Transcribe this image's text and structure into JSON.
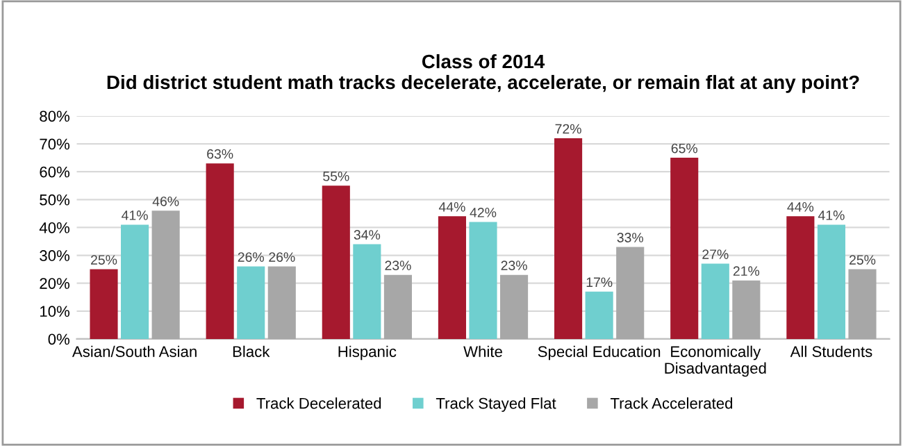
{
  "chart_data": {
    "type": "bar",
    "title": "Class of 2014\nDid district student math tracks decelerate, accelerate, or remain flat at any point?",
    "categories": [
      "Asian/South Asian",
      "Black",
      "Hispanic",
      "White",
      "Special Education",
      "Economically\nDisadvantaged",
      "All Students"
    ],
    "series": [
      {
        "name": "Track Decelerated",
        "color": "#a6192e",
        "values": [
          25,
          63,
          55,
          44,
          72,
          65,
          44
        ],
        "value_labels": [
          "25%",
          "63%",
          "55%",
          "44%",
          "72%",
          "65%",
          "44%"
        ]
      },
      {
        "name": "Track Stayed Flat",
        "color": "#6fcfcf",
        "values": [
          41,
          26,
          34,
          42,
          17,
          27,
          41
        ],
        "value_labels": [
          "41%",
          "26%",
          "34%",
          "42%",
          "17%",
          "27%",
          "41%"
        ]
      },
      {
        "name": "Track Accelerated",
        "color": "#a7a7a7",
        "values": [
          46,
          26,
          23,
          23,
          33,
          21,
          25
        ],
        "value_labels": [
          "46%",
          "26%",
          "23%",
          "23%",
          "33%",
          "21%",
          "25%"
        ]
      }
    ],
    "ylim": [
      0,
      80
    ],
    "yticks": [
      {
        "value": 0,
        "label": "0%"
      },
      {
        "value": 10,
        "label": "10%"
      },
      {
        "value": 20,
        "label": "20%"
      },
      {
        "value": 30,
        "label": "30%"
      },
      {
        "value": 40,
        "label": "40%"
      },
      {
        "value": 50,
        "label": "50%"
      },
      {
        "value": 60,
        "label": "60%"
      },
      {
        "value": 70,
        "label": "70%"
      },
      {
        "value": 80,
        "label": "80%"
      }
    ],
    "grid": "y",
    "legend": "bottom"
  }
}
